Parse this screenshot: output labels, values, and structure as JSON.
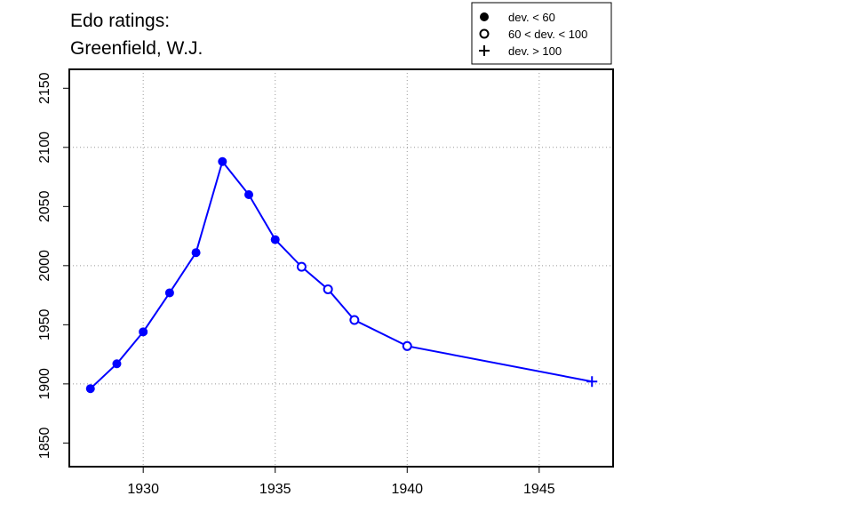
{
  "chart_data": {
    "type": "line",
    "title_lines": [
      "Edo ratings:",
      "Greenfield, W.J."
    ],
    "xlabel": "",
    "ylabel": "",
    "xlim": [
      1927.2,
      1947.8
    ],
    "ylim": [
      1830,
      2166
    ],
    "xticks": [
      1930,
      1935,
      1940,
      1945
    ],
    "yticks": [
      1850,
      1900,
      1950,
      2000,
      2050,
      2100,
      2150
    ],
    "grid": true,
    "line_color": "#0000ff",
    "legend": {
      "placement": "top-right",
      "entries": [
        {
          "marker": "filled-circle",
          "label": "dev. < 60"
        },
        {
          "marker": "open-circle",
          "label": "60 < dev. < 100"
        },
        {
          "marker": "plus",
          "label": "dev. > 100"
        }
      ]
    },
    "series": [
      {
        "name": "Greenfield, W.J.",
        "points": [
          {
            "x": 1928,
            "y": 1896,
            "marker": "filled-circle"
          },
          {
            "x": 1929,
            "y": 1917,
            "marker": "filled-circle"
          },
          {
            "x": 1930,
            "y": 1944,
            "marker": "filled-circle"
          },
          {
            "x": 1931,
            "y": 1977,
            "marker": "filled-circle"
          },
          {
            "x": 1932,
            "y": 2011,
            "marker": "filled-circle"
          },
          {
            "x": 1933,
            "y": 2088,
            "marker": "filled-circle"
          },
          {
            "x": 1934,
            "y": 2060,
            "marker": "filled-circle"
          },
          {
            "x": 1935,
            "y": 2022,
            "marker": "filled-circle"
          },
          {
            "x": 1936,
            "y": 1999,
            "marker": "open-circle"
          },
          {
            "x": 1937,
            "y": 1980,
            "marker": "open-circle"
          },
          {
            "x": 1938,
            "y": 1954,
            "marker": "open-circle"
          },
          {
            "x": 1940,
            "y": 1932,
            "marker": "open-circle"
          },
          {
            "x": 1947,
            "y": 1902,
            "marker": "plus"
          }
        ]
      }
    ]
  }
}
